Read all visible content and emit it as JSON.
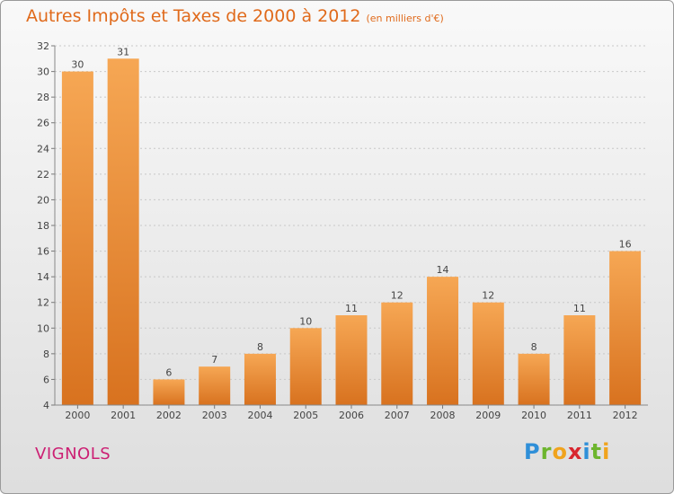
{
  "header": {
    "title": "Autres Impôts et Taxes de 2000 à 2012",
    "subtitle": "(en milliers d'€)"
  },
  "commune": "VIGNOLS",
  "brand": {
    "p": "P",
    "r": "r",
    "o": "o",
    "x": "x",
    "i": "i",
    "t": "t",
    "i2": "i"
  },
  "colors": {
    "bar_top": "#f6a754",
    "bar_bottom": "#d8721f",
    "title": "#e06a1b",
    "commune": "#cc1f73",
    "axis": "#555555"
  },
  "chart_data": {
    "type": "bar",
    "categories": [
      "2000",
      "2001",
      "2002",
      "2003",
      "2004",
      "2005",
      "2006",
      "2007",
      "2008",
      "2009",
      "2010",
      "2011",
      "2012"
    ],
    "values": [
      30,
      31,
      6,
      7,
      8,
      10,
      11,
      12,
      14,
      12,
      8,
      11,
      16
    ],
    "ylim": [
      4,
      32
    ],
    "yticks": [
      4,
      6,
      8,
      10,
      12,
      14,
      16,
      18,
      20,
      22,
      24,
      26,
      28,
      30,
      32
    ],
    "grid": "horizontal dashed",
    "legend": "none"
  }
}
